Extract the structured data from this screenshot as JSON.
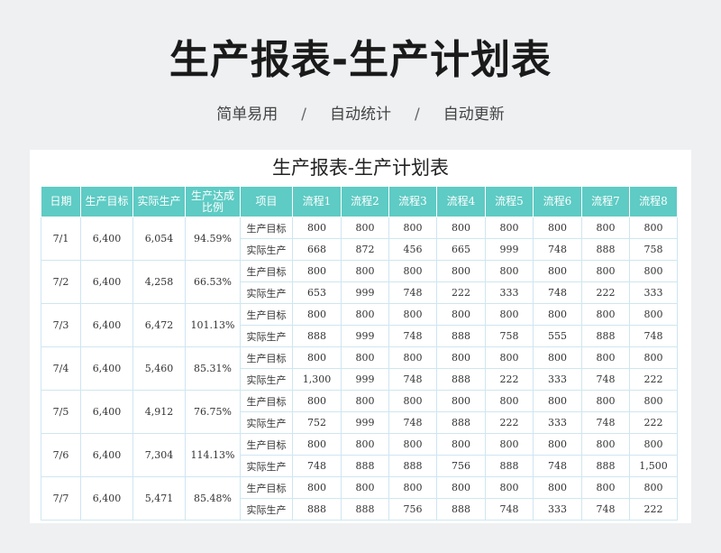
{
  "page": {
    "title": "生产报表-生产计划表",
    "features": [
      "简单易用",
      "自动统计",
      "自动更新"
    ],
    "separator": "/"
  },
  "sheet": {
    "title": "生产报表-生产计划表",
    "headers": [
      "日期",
      "生产目标",
      "实际生产",
      "生产达成比例",
      "项目",
      "流程1",
      "流程2",
      "流程3",
      "流程4",
      "流程5",
      "流程6",
      "流程7",
      "流程8"
    ],
    "row_labels": {
      "target": "生产目标",
      "actual": "实际生产"
    },
    "rows": [
      {
        "date": "7/1",
        "target": "6,400",
        "actual": "6,054",
        "ratio": "94.59%",
        "target_flows": [
          "800",
          "800",
          "800",
          "800",
          "800",
          "800",
          "800",
          "800"
        ],
        "actual_flows": [
          "668",
          "872",
          "456",
          "665",
          "999",
          "748",
          "888",
          "758"
        ]
      },
      {
        "date": "7/2",
        "target": "6,400",
        "actual": "4,258",
        "ratio": "66.53%",
        "target_flows": [
          "800",
          "800",
          "800",
          "800",
          "800",
          "800",
          "800",
          "800"
        ],
        "actual_flows": [
          "653",
          "999",
          "748",
          "222",
          "333",
          "748",
          "222",
          "333"
        ]
      },
      {
        "date": "7/3",
        "target": "6,400",
        "actual": "6,472",
        "ratio": "101.13%",
        "target_flows": [
          "800",
          "800",
          "800",
          "800",
          "800",
          "800",
          "800",
          "800"
        ],
        "actual_flows": [
          "888",
          "999",
          "748",
          "888",
          "758",
          "555",
          "888",
          "748"
        ]
      },
      {
        "date": "7/4",
        "target": "6,400",
        "actual": "5,460",
        "ratio": "85.31%",
        "target_flows": [
          "800",
          "800",
          "800",
          "800",
          "800",
          "800",
          "800",
          "800"
        ],
        "actual_flows": [
          "1,300",
          "999",
          "748",
          "888",
          "222",
          "333",
          "748",
          "222"
        ]
      },
      {
        "date": "7/5",
        "target": "6,400",
        "actual": "4,912",
        "ratio": "76.75%",
        "target_flows": [
          "800",
          "800",
          "800",
          "800",
          "800",
          "800",
          "800",
          "800"
        ],
        "actual_flows": [
          "752",
          "999",
          "748",
          "888",
          "222",
          "333",
          "748",
          "222"
        ]
      },
      {
        "date": "7/6",
        "target": "6,400",
        "actual": "7,304",
        "ratio": "114.13%",
        "target_flows": [
          "800",
          "800",
          "800",
          "800",
          "800",
          "800",
          "800",
          "800"
        ],
        "actual_flows": [
          "748",
          "888",
          "888",
          "756",
          "888",
          "748",
          "888",
          "1,500"
        ]
      },
      {
        "date": "7/7",
        "target": "6,400",
        "actual": "5,471",
        "ratio": "85.48%",
        "target_flows": [
          "800",
          "800",
          "800",
          "800",
          "800",
          "800",
          "800",
          "800"
        ],
        "actual_flows": [
          "888",
          "888",
          "756",
          "888",
          "748",
          "333",
          "748",
          "222"
        ]
      }
    ]
  }
}
